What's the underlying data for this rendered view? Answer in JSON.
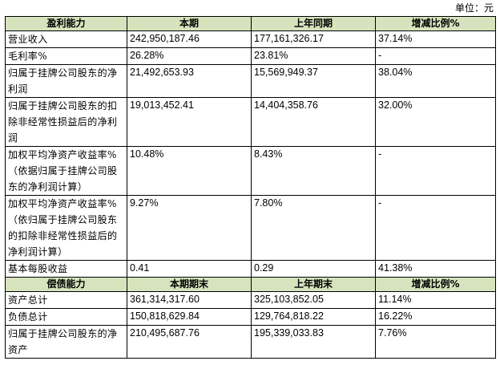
{
  "unit_label": "单位：元",
  "profit_section": {
    "headers": [
      "盈利能力",
      "本期",
      "上年同期",
      "增减比例%"
    ],
    "rows": [
      {
        "label": "营业收入",
        "current": "242,950,187.46",
        "prior": "177,161,326.17",
        "change": "37.14%"
      },
      {
        "label": "毛利率%",
        "current": "26.28%",
        "prior": "23.81%",
        "change": "-"
      },
      {
        "label": "归属于挂牌公司股东的净利润",
        "current": "21,492,653.93",
        "prior": "15,569,949.37",
        "change": "38.04%"
      },
      {
        "label": "归属于挂牌公司股东的扣除非经常性损益后的净利润",
        "current": "19,013,452.41",
        "prior": "14,404,358.76",
        "change": "32.00%"
      },
      {
        "label": "加权平均净资产收益率%（依据归属于挂牌公司股东的净利润计算）",
        "current": "10.48%",
        "prior": "8.43%",
        "change": "-"
      },
      {
        "label": "加权平均净资产收益率%（依归属于挂牌公司股东的扣除非经常性损益后的净利润计算）",
        "current": "9.27%",
        "prior": "7.80%",
        "change": "-"
      },
      {
        "label": "基本每股收益",
        "current": "0.41",
        "prior": "0.29",
        "change": "41.38%"
      }
    ]
  },
  "solvency_section": {
    "headers": [
      "偿债能力",
      "本期期末",
      "上年期末",
      "增减比例%"
    ],
    "rows": [
      {
        "label": "资产总计",
        "current": "361,314,317.60",
        "prior": "325,103,852.05",
        "change": "11.14%"
      },
      {
        "label": "负债总计",
        "current": "150,818,629.84",
        "prior": "129,764,818.22",
        "change": "16.22%"
      },
      {
        "label": "归属于挂牌公司股东的净资产",
        "current": "210,495,687.76",
        "prior": "195,339,033.83",
        "change": "7.76%"
      }
    ]
  }
}
